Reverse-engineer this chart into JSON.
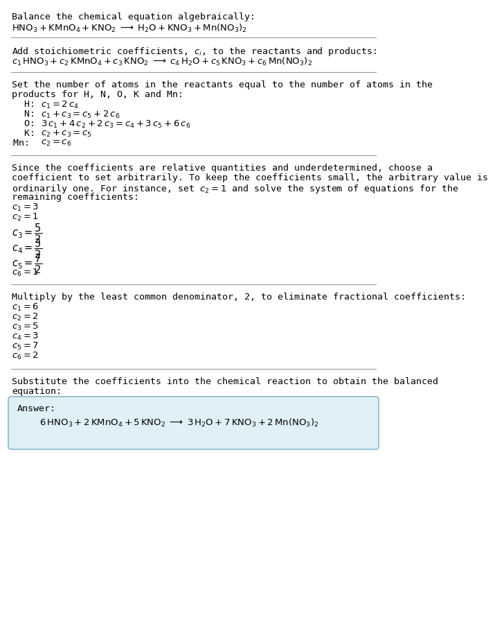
{
  "bg_color": "#ffffff",
  "text_color": "#000000",
  "section1_title": "Balance the chemical equation algebraically:",
  "section2_title": "Add stoichiometric coefficients, $c_i$, to the reactants and products:",
  "section3_title_l1": "Set the number of atoms in the reactants equal to the number of atoms in the",
  "section3_title_l2": "products for H, N, O, K and Mn:",
  "section3_lines": [
    [
      "  H:  ",
      "$c_1 = 2\\,c_4$"
    ],
    [
      "  N:  ",
      "$c_1 + c_3 = c_5 + 2\\,c_6$"
    ],
    [
      "  O:  ",
      "$3\\,c_1 + 4\\,c_2 + 2\\,c_3 = c_4 + 3\\,c_5 + 6\\,c_6$"
    ],
    [
      "  K:  ",
      "$c_2 + c_3 = c_5$"
    ],
    [
      "Mn:  ",
      "$c_2 = c_6$"
    ]
  ],
  "section4_title_l1": "Since the coefficients are relative quantities and underdetermined, choose a",
  "section4_title_l2": "coefficient to set arbitrarily. To keep the coefficients small, the arbitrary value is",
  "section4_title_l3": "ordinarily one. For instance, set $c_2 = 1$ and solve the system of equations for the",
  "section4_title_l4": "remaining coefficients:",
  "section4_lines": [
    "$c_1 = 3$",
    "$c_2 = 1$",
    "$c_3 = \\dfrac{5}{2}$",
    "$c_4 = \\dfrac{3}{2}$",
    "$c_5 = \\dfrac{7}{2}$",
    "$c_6 = 1$"
  ],
  "section5_title": "Multiply by the least common denominator, 2, to eliminate fractional coefficients:",
  "section5_lines": [
    "$c_1 = 6$",
    "$c_2 = 2$",
    "$c_3 = 5$",
    "$c_4 = 3$",
    "$c_5 = 7$",
    "$c_6 = 2$"
  ],
  "section6_title_l1": "Substitute the coefficients into the chemical reaction to obtain the balanced",
  "section6_title_l2": "equation:",
  "answer_label": "Answer:",
  "answer_box_color": "#dff0f7",
  "answer_box_edge": "#8ab8cc",
  "divider_color": "#999999",
  "fontsize": 9.5,
  "mono_fontsize": 9.5
}
